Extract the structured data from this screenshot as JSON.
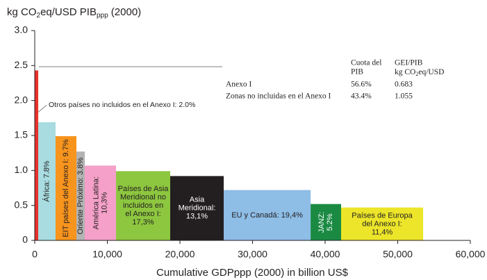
{
  "chart_data": {
    "type": "variable-width-bar",
    "title": [
      "kg CO",
      "2",
      "eq/USD PIB",
      "ppp",
      " (2000)"
    ],
    "x_label": "Cumulative GDPppp (2000) in billion US$",
    "categories": [
      [
        "Otros países no incluidos en el Anexo I: 2.0%"
      ],
      [
        "África: 7.8%"
      ],
      [
        "EIT países del Anexo I: 9.7%"
      ],
      [
        "Oriente Próximo: 3.8%"
      ],
      [
        "América Latina:",
        "10,3%"
      ],
      [
        "Países de Asia",
        "Meridional no",
        "incluidos en",
        "el Anexo I:",
        "17,3%"
      ],
      [
        "Asia",
        "Meridional:",
        "13,1%"
      ],
      [
        "EU y Canadá: 19,4%"
      ],
      [
        "JANZ:",
        "5.2%"
      ],
      [
        "Países de Europa",
        "del Anexo I:",
        "11,4%"
      ]
    ],
    "bins": [
      0,
      480,
      2870,
      5740,
      6890,
      11200,
      18660,
      26030,
      38000,
      42200,
      53500
    ],
    "values": [
      2.43,
      1.69,
      1.49,
      1.27,
      1.07,
      0.99,
      0.92,
      0.72,
      0.52,
      0.47
    ],
    "colors": [
      "#e8322c",
      "#a8dce0",
      "#f7941d",
      "#b3b3b3",
      "#f4a0c8",
      "#8dc63f",
      "#231f20",
      "#8ebde6",
      "#1a8a43",
      "#ece52a"
    ],
    "xlim": [
      0,
      60000
    ],
    "xticks": [
      0,
      {
        "value": 10000,
        "label": "10,000"
      },
      {
        "value": 20000,
        "label": "20,000"
      },
      {
        "value": 30000,
        "label": "30,000"
      },
      {
        "value": 40000,
        "label": "40,000"
      },
      {
        "value": 50000,
        "label": "50,000"
      },
      {
        "value": 60000,
        "label": "60,000"
      }
    ],
    "ylim": [
      0,
      3.0
    ],
    "yticks": [
      0,
      0.5,
      {
        "value": 1.0,
        "label": "1.0"
      },
      1.5,
      {
        "value": 2.0,
        "label": "2.0"
      },
      2.5,
      {
        "value": 3.0,
        "label": "3.0"
      }
    ],
    "inset_table": {
      "header": [
        [
          "Cuota del",
          "PIB"
        ],
        [
          [
            "GEI/PIB"
          ],
          [
            "kg CO",
            "2",
            "eq/USD"
          ]
        ]
      ],
      "rows": [
        [
          "Anexo I",
          "56.6%",
          "0.683"
        ],
        [
          "Zonas no incluidas en el Anexo I",
          "43.4%",
          "1.055"
        ]
      ]
    }
  }
}
